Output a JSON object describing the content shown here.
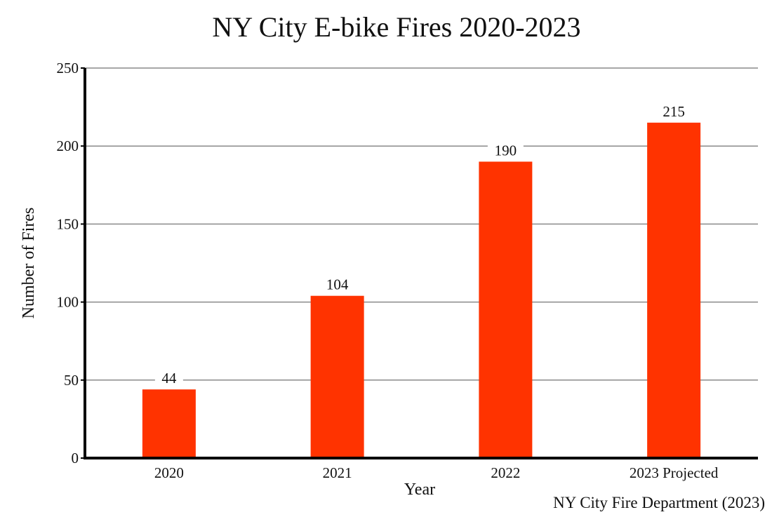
{
  "chart_data": {
    "type": "bar",
    "title": "NY City E-bike Fires 2020-2023",
    "xlabel": "Year",
    "ylabel": "Number of Fires",
    "categories": [
      "2020",
      "2021",
      "2022",
      "2023 Projected"
    ],
    "values": [
      44,
      104,
      190,
      215
    ],
    "data_labels": [
      "44",
      "104",
      "190",
      "215"
    ],
    "ylim": [
      0,
      250
    ],
    "yticks": [
      0,
      50,
      100,
      150,
      200,
      250
    ],
    "grid": true,
    "bar_color": "#ff3300",
    "source": "NY City Fire Department (2023)"
  }
}
